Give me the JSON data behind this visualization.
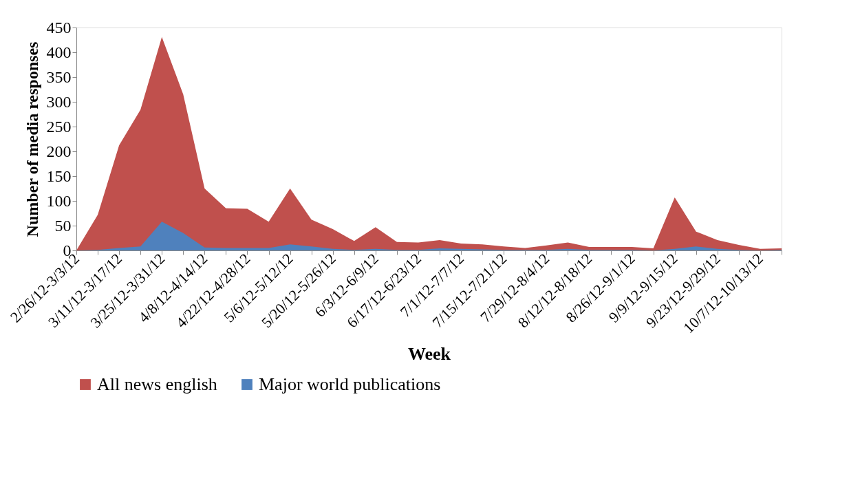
{
  "chart_data": {
    "type": "area",
    "xlabel": "Week",
    "ylabel": "Number of media responses",
    "categories": [
      "2/26/12-3/3/12",
      null,
      "3/11/12-3/17/12",
      null,
      "3/25/12-3/31/12",
      null,
      "4/8/12-4/14/12",
      null,
      "4/22/12-4/28/12",
      null,
      "5/6/12-5/12/12",
      null,
      "5/20/12-5/26/12",
      null,
      "6/3/12-6/9/12",
      null,
      "6/17/12-6/23/12",
      null,
      "7/1/12-7/7/12",
      null,
      "7/15/12-7/21/12",
      null,
      "7/29/12-8/4/12",
      null,
      "8/12/12-8/18/12",
      null,
      "8/26/12-9/1/12",
      null,
      "9/9/12-9/15/12",
      null,
      "9/23/12-9/29/12",
      null,
      "10/7/12-10/13/12",
      null
    ],
    "series": [
      {
        "name": "All news english",
        "color": "#c0504d",
        "values": [
          0,
          72,
          212,
          284,
          431,
          315,
          125,
          85,
          84,
          58,
          125,
          62,
          43,
          19,
          47,
          17,
          16,
          21,
          14,
          12,
          8,
          5,
          10,
          16,
          7,
          7,
          7,
          4,
          107,
          38,
          21,
          11,
          3,
          4
        ]
      },
      {
        "name": "Major world publications",
        "color": "#4f81bd",
        "values": [
          0,
          1,
          5,
          8,
          58,
          35,
          6,
          5,
          5,
          5,
          12,
          8,
          3,
          1,
          3,
          1,
          1,
          4,
          3,
          2,
          1,
          1,
          1,
          3,
          1,
          1,
          1,
          0,
          3,
          8,
          3,
          1,
          0,
          1
        ]
      }
    ],
    "ylim": [
      0,
      450
    ],
    "yticks": [
      0,
      50,
      100,
      150,
      200,
      250,
      300,
      350,
      400,
      450
    ],
    "grid": false,
    "legend": "bottom"
  }
}
